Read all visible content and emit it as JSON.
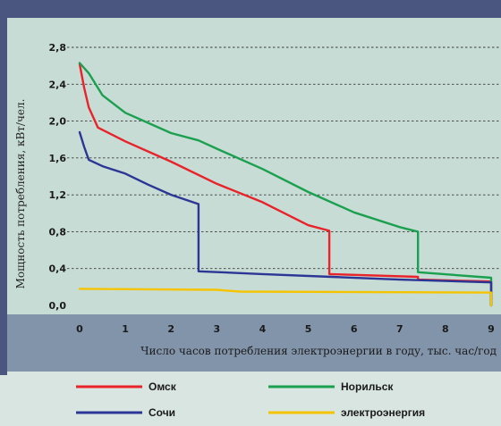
{
  "chart_data": {
    "type": "line",
    "xlabel": "Число часов потребления электроэнергии в году, тыс. час/год",
    "ylabel": "Мощность потребления, кВт/чел.",
    "x_ticks": [
      "0",
      "1",
      "2",
      "3",
      "4",
      "5",
      "6",
      "7",
      "8",
      "9"
    ],
    "y_ticks": [
      "0,0",
      "0,4",
      "0,8",
      "1,2",
      "1,6",
      "2,0",
      "2,4",
      "2,8"
    ],
    "xlim": [
      0,
      9
    ],
    "ylim": [
      0,
      3
    ],
    "grid": "horizontal dashed",
    "legend_position": "bottom",
    "series": [
      {
        "name": "Омск",
        "color": "#e8232a",
        "points": [
          [
            0,
            2.62
          ],
          [
            0.1,
            2.36
          ],
          [
            0.2,
            2.15
          ],
          [
            0.4,
            1.93
          ],
          [
            1.0,
            1.78
          ],
          [
            2.0,
            1.56
          ],
          [
            3.0,
            1.32
          ],
          [
            4.0,
            1.12
          ],
          [
            5.0,
            0.87
          ],
          [
            5.46,
            0.81
          ],
          [
            5.46,
            0.34
          ],
          [
            7.4,
            0.31
          ],
          [
            7.4,
            0.28
          ],
          [
            9.0,
            0.26
          ],
          [
            9.0,
            0.0
          ]
        ]
      },
      {
        "name": "Норильск",
        "color": "#1aa04e",
        "points": [
          [
            0,
            2.63
          ],
          [
            0.2,
            2.52
          ],
          [
            0.5,
            2.28
          ],
          [
            1.0,
            2.09
          ],
          [
            2.0,
            1.87
          ],
          [
            2.6,
            1.79
          ],
          [
            3.0,
            1.7
          ],
          [
            4.0,
            1.48
          ],
          [
            5.0,
            1.23
          ],
          [
            6.0,
            1.01
          ],
          [
            7.0,
            0.85
          ],
          [
            7.4,
            0.8
          ],
          [
            7.4,
            0.36
          ],
          [
            9.0,
            0.3
          ],
          [
            9.0,
            0.0
          ]
        ]
      },
      {
        "name": "Сочи",
        "color": "#2b3695",
        "points": [
          [
            0,
            1.88
          ],
          [
            0.1,
            1.72
          ],
          [
            0.2,
            1.58
          ],
          [
            0.5,
            1.51
          ],
          [
            1.0,
            1.43
          ],
          [
            1.5,
            1.31
          ],
          [
            2.0,
            1.2
          ],
          [
            2.6,
            1.1
          ],
          [
            2.6,
            0.37
          ],
          [
            4.0,
            0.34
          ],
          [
            5.5,
            0.31
          ],
          [
            7.0,
            0.28
          ],
          [
            9.0,
            0.25
          ],
          [
            9.0,
            0.0
          ]
        ]
      },
      {
        "name": "электроэнергия",
        "color": "#f5c400",
        "points": [
          [
            0,
            0.18
          ],
          [
            3.0,
            0.17
          ],
          [
            3.5,
            0.15
          ],
          [
            9.0,
            0.14
          ],
          [
            9.0,
            0.0
          ]
        ]
      }
    ]
  },
  "colors": {
    "plot_background": "#c8dcd6",
    "plot_frame": "#4a5680",
    "x_axis_band": "#8294aa",
    "legend_background": "#d9e5e1",
    "gridline": "#3a3a3a"
  }
}
